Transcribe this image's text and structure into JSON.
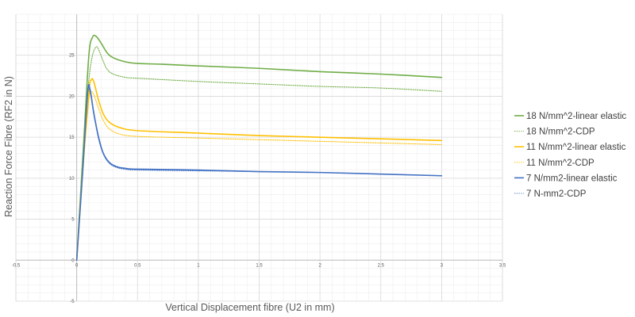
{
  "chart_data": {
    "type": "line",
    "title": "",
    "xlabel": "Vertical Displacement fibre (U2 in mm)",
    "ylabel": "Reaction Force Fibre (RF2 in N)",
    "xlim": [
      -0.5,
      3.5
    ],
    "ylim": [
      -5,
      30
    ],
    "x_ticks": [
      -0.5,
      0,
      0.5,
      1,
      1.5,
      2,
      2.5,
      3,
      3.5
    ],
    "x_tick_labels": [
      "-0.5",
      "0",
      "0.5",
      "1",
      "1.5",
      "2",
      "2.5",
      "3",
      "3.5"
    ],
    "y_ticks": [
      -5,
      0,
      5,
      10,
      15,
      20,
      25
    ],
    "y_tick_labels": [
      "-5",
      "0",
      "5",
      "10",
      "15",
      "20",
      "25"
    ],
    "grid": true,
    "legend_position": "right",
    "series": [
      {
        "name": "18 N/mm^2-linear elastic",
        "color": "#70AD47",
        "style": "solid",
        "x": [
          0,
          0.06,
          0.1,
          0.13,
          0.16,
          0.2,
          0.25,
          0.3,
          0.4,
          0.5,
          0.7,
          1.0,
          1.5,
          2.0,
          2.5,
          3.0
        ],
        "y": [
          0,
          15,
          25,
          27.2,
          27.3,
          26.5,
          25.3,
          24.7,
          24.2,
          24.0,
          23.9,
          23.7,
          23.4,
          23.0,
          22.7,
          22.3
        ]
      },
      {
        "name": "18 N/mm^2-CDP",
        "color": "#70AD47",
        "style": "dotted",
        "x": [
          0,
          0.06,
          0.1,
          0.13,
          0.16,
          0.18,
          0.22,
          0.25,
          0.3,
          0.4,
          0.5,
          1.0,
          1.5,
          2.0,
          2.5,
          3.0
        ],
        "y": [
          0,
          15,
          22,
          25,
          26.0,
          25.7,
          24.2,
          23.3,
          22.7,
          22.3,
          22.2,
          21.8,
          21.5,
          21.2,
          21.0,
          20.6
        ]
      },
      {
        "name": "11 N/mm^2-linear elastic",
        "color": "#FFC000",
        "style": "solid",
        "x": [
          0,
          0.05,
          0.1,
          0.12,
          0.14,
          0.18,
          0.22,
          0.27,
          0.35,
          0.5,
          1.0,
          1.5,
          2.0,
          2.5,
          3.0
        ],
        "y": [
          0,
          11,
          20.5,
          22.0,
          21.8,
          19.5,
          17.8,
          16.8,
          16.2,
          15.8,
          15.5,
          15.2,
          15.0,
          14.8,
          14.6
        ]
      },
      {
        "name": "11 N/mm^2-CDP",
        "color": "#FFC000",
        "style": "dotted",
        "x": [
          0,
          0.05,
          0.1,
          0.12,
          0.14,
          0.18,
          0.22,
          0.27,
          0.35,
          0.5,
          1.0,
          1.5,
          2.0,
          2.5,
          3.0
        ],
        "y": [
          0,
          11,
          19.5,
          20.5,
          20.2,
          18.5,
          17.0,
          16.0,
          15.4,
          15.1,
          14.9,
          14.7,
          14.5,
          14.3,
          14.1
        ]
      },
      {
        "name": "7 N/mm2-linear elastic",
        "color": "#4472C4",
        "style": "solid",
        "x": [
          0,
          0.05,
          0.09,
          0.11,
          0.14,
          0.18,
          0.22,
          0.27,
          0.33,
          0.4,
          0.5,
          1.0,
          1.5,
          2.0,
          2.5,
          3.0
        ],
        "y": [
          0,
          11,
          20.5,
          20.8,
          18.0,
          15.0,
          13.0,
          11.9,
          11.4,
          11.2,
          11.1,
          11.0,
          10.8,
          10.7,
          10.5,
          10.3
        ]
      },
      {
        "name": "7 N-mm2-CDP",
        "color": "#4472C4",
        "style": "dotted",
        "x": [
          0,
          0.05,
          0.09,
          0.11,
          0.14,
          0.18,
          0.22,
          0.27,
          0.33,
          0.4,
          0.5,
          1.0,
          1.5,
          2.0,
          2.5,
          3.0
        ],
        "y": [
          0,
          11,
          20.2,
          20.5,
          17.8,
          14.8,
          12.9,
          11.8,
          11.3,
          11.1,
          11.0,
          10.9,
          10.8,
          10.7,
          10.5,
          10.3
        ]
      }
    ]
  }
}
